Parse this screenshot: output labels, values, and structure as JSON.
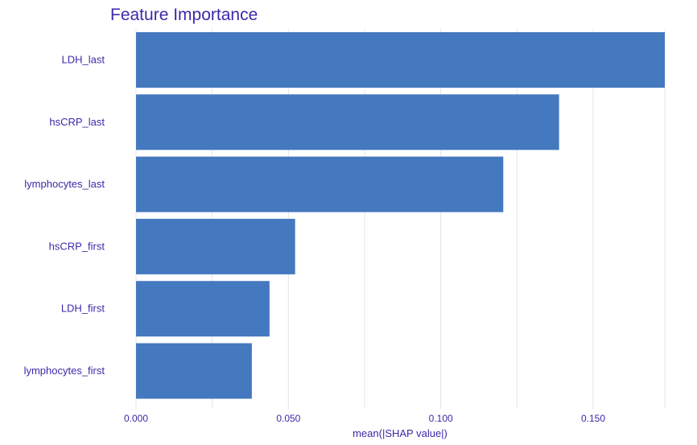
{
  "chart_data": {
    "type": "bar",
    "orientation": "horizontal",
    "title": "Feature Importance",
    "xlabel": "mean(|SHAP value|)",
    "ylabel": "",
    "categories": [
      "LDH_last",
      "hsCRP_last",
      "lymphocytes_last",
      "hsCRP_first",
      "LDH_first",
      "lymphocytes_first"
    ],
    "values": [
      0.1735,
      0.1388,
      0.1205,
      0.0522,
      0.0438,
      0.038
    ],
    "xlim": [
      0,
      0.1735
    ],
    "x_ticks": [
      0,
      0.05,
      0.1,
      0.15
    ],
    "x_tick_labels": [
      "0.000",
      "0.050",
      "0.100",
      "0.150"
    ],
    "grid": true,
    "bar_color": "#4478bf",
    "text_color": "#3b2aa8",
    "grid_color": "#e4e4e4"
  }
}
